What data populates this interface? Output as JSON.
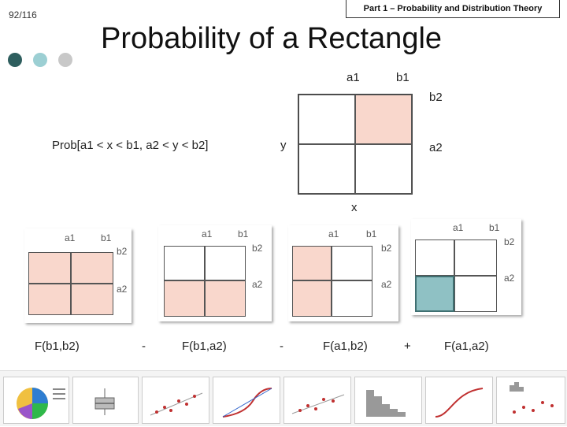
{
  "page": {
    "number": "92/116",
    "section": "Part 1 – Probability and Distribution Theory"
  },
  "slide": {
    "title": "Probability of a Rectangle",
    "expression": "Prob[a1 < x < b1, a2 < y < b2]"
  },
  "diagram": {
    "labels": {
      "a1": "a1",
      "b1": "b1",
      "b2": "b2",
      "a2": "a2",
      "x": "x",
      "y": "y"
    },
    "shade_color": "#f9d7cc",
    "highlight_color": "#8fc1c4"
  },
  "formula": {
    "term1": "F(b1,b2)",
    "op1": "-",
    "term2": "F(b1,a2)",
    "op2": "-",
    "term3": "F(a1,b2)",
    "op3": "+",
    "term4": "F(a1,a2)"
  },
  "colors": {
    "dot1": "#2e5e5e",
    "dot2": "#9ccfd3",
    "dot3": "#c8c8c8"
  }
}
